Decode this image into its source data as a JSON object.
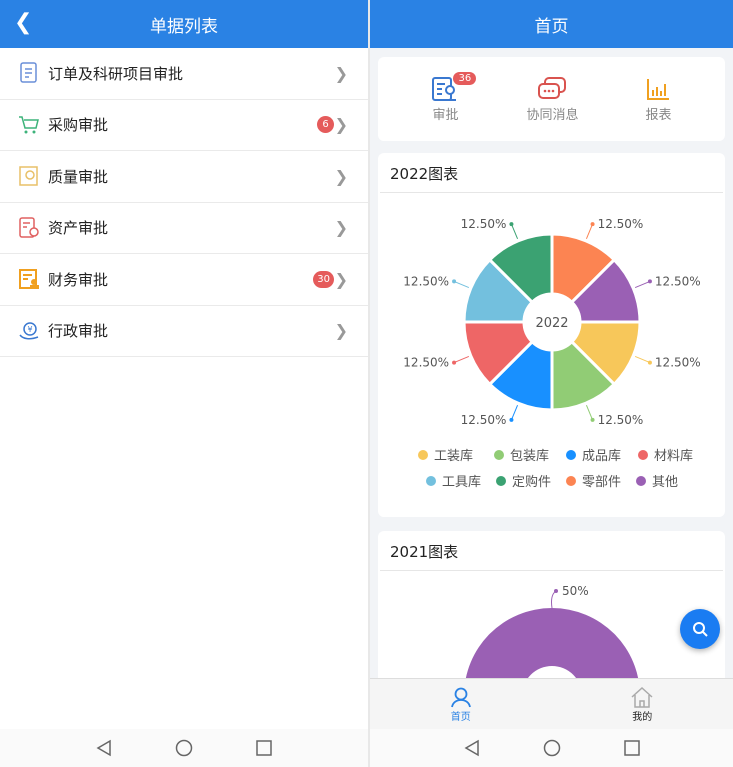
{
  "left": {
    "title": "单据列表",
    "items": [
      {
        "label": "订单及科研项目审批",
        "icon": "document-icon",
        "color": "#6a8fd8"
      },
      {
        "label": "采购审批",
        "icon": "cart-icon",
        "color": "#3db37a",
        "badge": "6"
      },
      {
        "label": "质量审批",
        "icon": "quality-icon",
        "color": "#e8c068"
      },
      {
        "label": "资产审批",
        "icon": "asset-certificate-icon",
        "color": "#e06060"
      },
      {
        "label": "财务审批",
        "icon": "finance-icon",
        "color": "#f0a020",
        "badge": "30"
      },
      {
        "label": "行政审批",
        "icon": "admin-money-icon",
        "color": "#3a78d0"
      }
    ]
  },
  "right": {
    "title": "首页",
    "quick": [
      {
        "label": "审批",
        "badge": "36",
        "icon": "approval-icon"
      },
      {
        "label": "协同消息",
        "icon": "chat-icon"
      },
      {
        "label": "报表",
        "icon": "bar-chart-icon"
      }
    ],
    "tabs": [
      {
        "label": "首页",
        "active": true
      },
      {
        "label": "我的"
      }
    ]
  },
  "chart_data": [
    {
      "type": "pie",
      "title": "2022图表",
      "center_label": "2022",
      "donut": true,
      "categories": [
        "工装库",
        "包装库",
        "成品库",
        "材料库",
        "工具库",
        "定购件",
        "零部件",
        "其他"
      ],
      "values": [
        12.5,
        12.5,
        12.5,
        12.5,
        12.5,
        12.5,
        12.5,
        12.5
      ],
      "labels": [
        "12.50%",
        "12.50%",
        "12.50%",
        "12.50%",
        "12.50%",
        "12.50%",
        "12.50%",
        "12.50%"
      ],
      "colors": [
        "#f7c75a",
        "#91cc75",
        "#1890ff",
        "#ee6666",
        "#73c0de",
        "#3ba272",
        "#fc8452",
        "#9a60b4"
      ],
      "legend": "bottom"
    },
    {
      "type": "pie",
      "title": "2021图表",
      "donut": true,
      "visible_labels": [
        "50%"
      ],
      "colors": [
        "#9a60b4"
      ]
    }
  ],
  "android_nav": [
    "back",
    "home",
    "recent"
  ]
}
